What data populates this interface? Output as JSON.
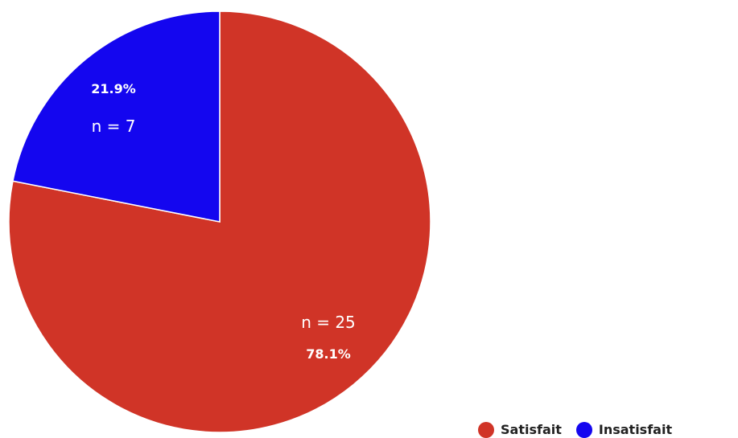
{
  "chart_data": {
    "type": "pie",
    "title": "",
    "slices": [
      {
        "name": "Satisfait",
        "value": 78.1,
        "count_label": "n = 25",
        "pct_label": "78.1%",
        "color": "#d03427"
      },
      {
        "name": "Insatisfait",
        "value": 21.9,
        "count_label": "n = 7",
        "pct_label": "21.9%",
        "color": "#1406ef"
      }
    ],
    "start_angle_deg": 0,
    "direction": "clockwise",
    "legend": {
      "position": "bottom-right"
    }
  }
}
